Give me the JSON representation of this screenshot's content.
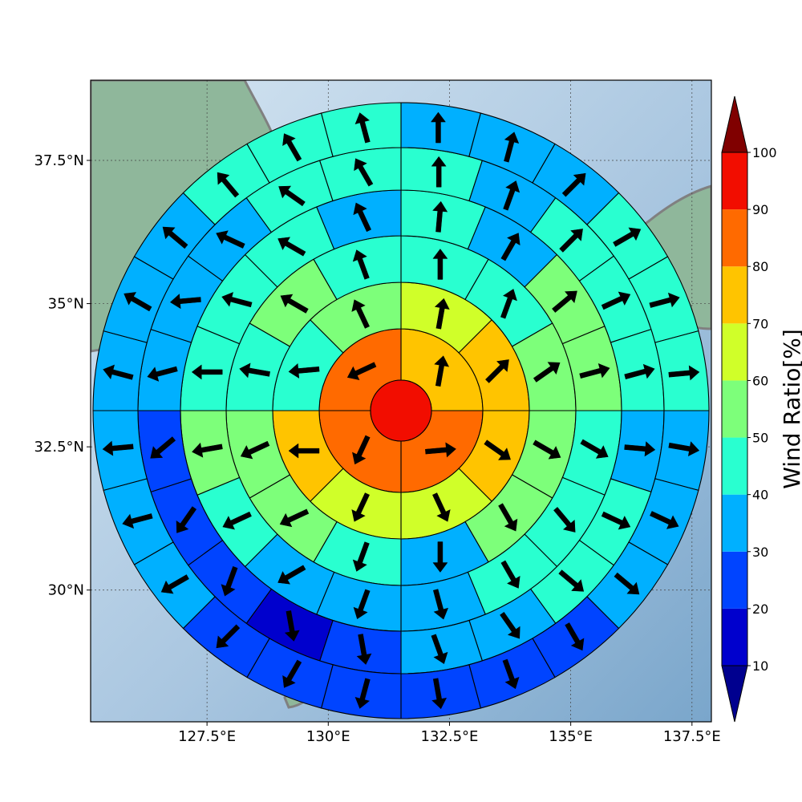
{
  "chart_data": {
    "type": "polar-sector-map",
    "x_ticks": [
      "127.5°E",
      "130°E",
      "132.5°E",
      "135°E",
      "137.5°E"
    ],
    "x_tick_values": [
      127.5,
      130.0,
      132.5,
      135.0,
      137.5
    ],
    "y_ticks": [
      "37.5°N",
      "35°N",
      "32.5°N",
      "30°N"
    ],
    "y_tick_values": [
      37.5,
      35.0,
      32.5,
      30.0
    ],
    "xlim": [
      125.1,
      137.9
    ],
    "ylim": [
      27.7,
      38.9
    ],
    "center_value": 95,
    "rings": [
      {
        "sectors": 4,
        "ratios": [
          75,
          85,
          85,
          85
        ],
        "arrows_deg": [
          10,
          85,
          205,
          245
        ]
      },
      {
        "sectors": 8,
        "ratios": [
          65,
          75,
          75,
          65,
          65,
          75,
          45,
          55
        ],
        "arrows_deg": [
          10,
          45,
          125,
          155,
          205,
          270,
          265,
          335
        ]
      },
      {
        "sectors": 12,
        "ratios": [
          45,
          45,
          55,
          55,
          55,
          35,
          45,
          55,
          55,
          45,
          55,
          45
        ],
        "arrows_deg": [
          0,
          20,
          55,
          120,
          150,
          180,
          200,
          245,
          245,
          280,
          300,
          340
        ]
      },
      {
        "sectors": 16,
        "ratios": [
          45,
          35,
          55,
          55,
          45,
          45,
          45,
          35,
          35,
          35,
          45,
          55,
          45,
          45,
          45,
          35
        ],
        "arrows_deg": [
          5,
          30,
          50,
          75,
          120,
          140,
          150,
          165,
          200,
          240,
          245,
          260,
          270,
          285,
          300,
          335
        ]
      },
      {
        "sectors": 20,
        "ratios": [
          45,
          35,
          45,
          45,
          45,
          35,
          45,
          45,
          35,
          35,
          25,
          15,
          25,
          25,
          25,
          35,
          35,
          35,
          45,
          45
        ],
        "arrows_deg": [
          0,
          20,
          45,
          65,
          75,
          95,
          115,
          130,
          145,
          160,
          170,
          170,
          200,
          215,
          230,
          255,
          265,
          295,
          305,
          330
        ]
      },
      {
        "sectors": 24,
        "ratios": [
          35,
          35,
          35,
          45,
          45,
          45,
          35,
          35,
          35,
          25,
          25,
          25,
          25,
          25,
          25,
          35,
          35,
          35,
          35,
          35,
          35,
          45,
          45,
          45
        ],
        "arrows_deg": [
          0,
          15,
          45,
          60,
          75,
          85,
          100,
          115,
          130,
          150,
          160,
          170,
          195,
          210,
          225,
          240,
          255,
          265,
          285,
          300,
          310,
          320,
          330,
          345
        ]
      }
    ],
    "colorbar": {
      "label": "Wind Ratio[%]",
      "ticks": [
        "10",
        "20",
        "30",
        "40",
        "50",
        "60",
        "70",
        "80",
        "90",
        "100"
      ],
      "levels": [
        10,
        20,
        30,
        40,
        50,
        60,
        70,
        80,
        90,
        100
      ],
      "colors": [
        "#0000cd",
        "#0044ff",
        "#00b0ff",
        "#29ffd0",
        "#7dff7a",
        "#d0ff29",
        "#ffc400",
        "#ff6a00",
        "#f20d00"
      ],
      "under_color": "#00008f",
      "over_color": "#800000"
    },
    "grid": true
  },
  "colors": {
    "coast": "#808080",
    "ocean_light": "#cfe0ee",
    "ocean_dark": "#7fa9cc",
    "land": "#8fb79b"
  }
}
